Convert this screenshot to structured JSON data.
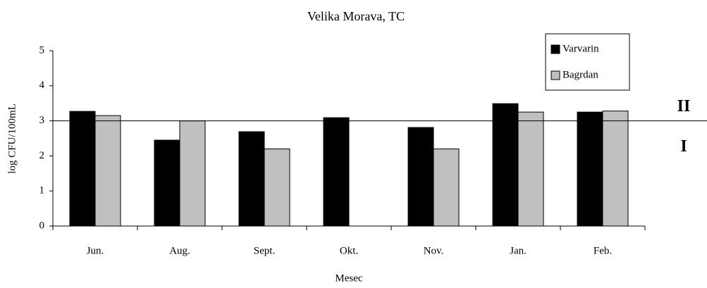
{
  "chart_data": {
    "type": "bar",
    "title": "Velika Morava, TC",
    "x_label": "Mesec",
    "y_label": "log CFU/100mL",
    "categories": [
      "Jun.",
      "Aug.",
      "Sept.",
      "Okt.",
      "Nov.",
      "Jan.",
      "Feb."
    ],
    "series": [
      {
        "name": "Varvarin",
        "color": "#000000",
        "values": [
          3.27,
          2.45,
          2.69,
          3.09,
          2.81,
          3.49,
          3.25
        ]
      },
      {
        "name": "Bagrdan",
        "color": "#c0c0c0",
        "values": [
          3.15,
          3.0,
          2.2,
          null,
          2.2,
          3.25,
          3.28
        ]
      }
    ],
    "ylim": [
      0,
      5
    ],
    "yticks": [
      0,
      1,
      2,
      3,
      4,
      5
    ],
    "reference_line": 3,
    "annotations": [
      "II",
      "I"
    ],
    "legend": "top-right"
  }
}
